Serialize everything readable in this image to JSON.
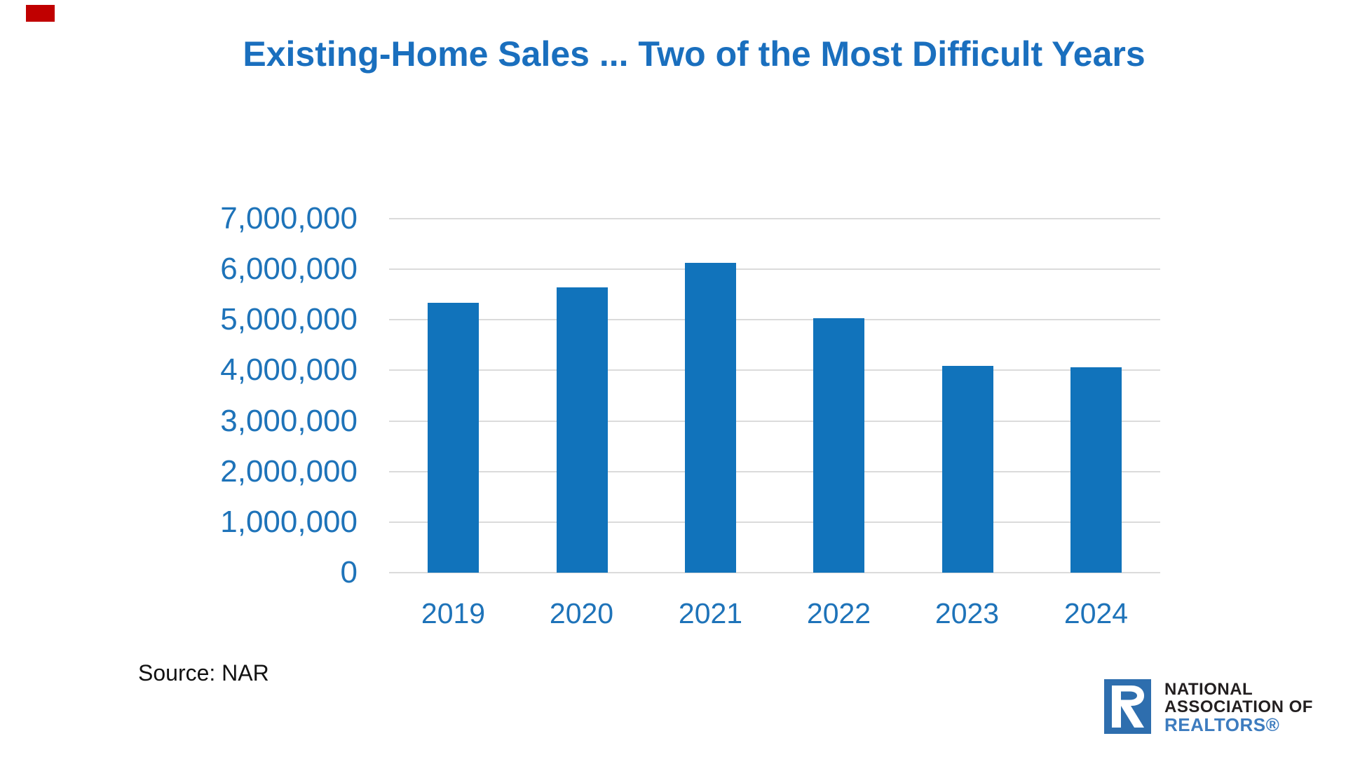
{
  "slide": {
    "background": "#FFFFFF",
    "accent_rectangle_color": "#C00000",
    "source_label": "Source: NAR"
  },
  "chart_data": {
    "type": "bar",
    "title": "Existing-Home Sales ... Two of the Most Difficult Years",
    "categories": [
      "2019",
      "2020",
      "2021",
      "2022",
      "2023",
      "2024"
    ],
    "values": [
      5340000,
      5640000,
      6120000,
      5030000,
      4090000,
      4060000
    ],
    "xlabel": "",
    "ylabel": "",
    "ylim": [
      0,
      7000000
    ],
    "ytick_step": 1000000,
    "ytick_labels": [
      "0",
      "1,000,000",
      "2,000,000",
      "3,000,000",
      "4,000,000",
      "5,000,000",
      "6,000,000",
      "7,000,000"
    ],
    "grid": true,
    "legend": false,
    "title_color": "#1A6FBE",
    "axis_label_color": "#1E73B9",
    "bar_color": "#1173BB",
    "gridline_color": "#DBDBDB"
  },
  "logo": {
    "line1": "NATIONAL",
    "line2": "ASSOCIATION OF",
    "line3": "REALTORS®",
    "mark_color": "#2E6EAE",
    "mark_glyph": "R-house-icon",
    "text_color": "#231F20",
    "realtors_color": "#3D7CBF"
  }
}
